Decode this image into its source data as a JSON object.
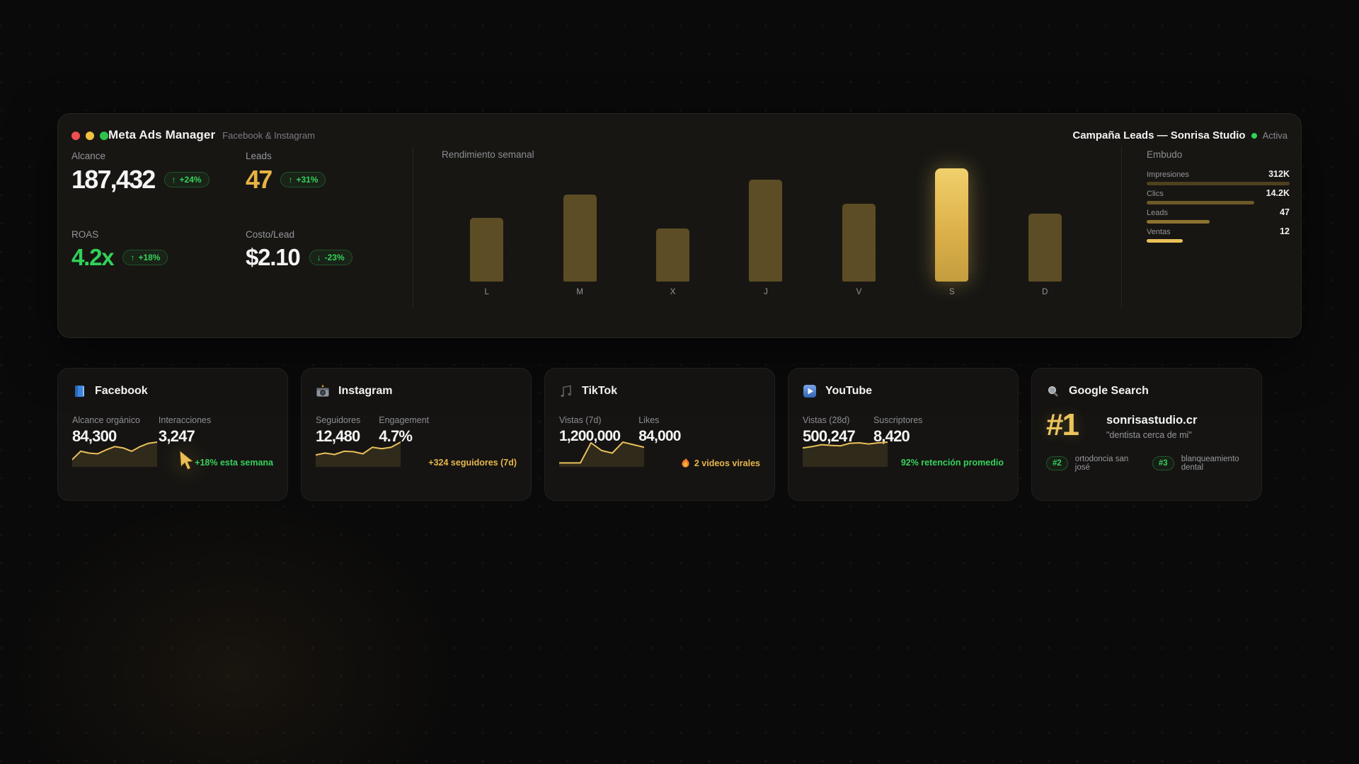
{
  "colors": {
    "accent_gold": "#e9c05a",
    "positive_green": "#36d15c",
    "leads_gold": "#e7b345",
    "bar_normal": "#5d4d24",
    "bar_highlight_top": "#f1d06b",
    "bar_highlight_bottom": "#c49d3e"
  },
  "window": {
    "title": "Meta Ads Manager",
    "subtitle": "Facebook & Instagram",
    "campaign_name": "Campaña Leads — Sonrisa Studio",
    "campaign_status": "Activa"
  },
  "metrics": [
    {
      "label": "Alcance",
      "value": "187,432",
      "arrow": "↑",
      "delta": "+24%",
      "value_style": "white"
    },
    {
      "label": "Leads",
      "value": "47",
      "arrow": "↑",
      "delta": "+31%",
      "value_style": "gold"
    },
    {
      "label": "ROAS",
      "value": "4.2x",
      "arrow": "↑",
      "delta": "+18%",
      "value_style": "green"
    },
    {
      "label": "Costo/Lead",
      "value": "$2.10",
      "arrow": "↓",
      "delta": "-23%",
      "value_style": "white"
    }
  ],
  "chart_data": [
    {
      "type": "bar",
      "title": "Rendimiento semanal",
      "categories": [
        "L",
        "M",
        "X",
        "J",
        "V",
        "S",
        "D"
      ],
      "values": [
        56,
        77,
        47,
        90,
        69,
        100,
        60
      ],
      "unit": "percent_of_max_day",
      "highlight_category": "S",
      "grid": false,
      "bar_color": "#5d4d24"
    },
    {
      "type": "bar",
      "orientation": "horizontal",
      "title": "Embudo",
      "stages": [
        {
          "label": "Impresiones",
          "value": "312K",
          "width_pct": 100,
          "color": "#4e411e"
        },
        {
          "label": "Clics",
          "value": "14.2K",
          "width_pct": 75,
          "color": "#6d5a28"
        },
        {
          "label": "Leads",
          "value": "47",
          "width_pct": 44,
          "color": "#8d7331"
        },
        {
          "label": "Ventas",
          "value": "12",
          "width_pct": 25,
          "color": "#eac159"
        }
      ]
    }
  ],
  "cards": [
    {
      "name": "Facebook",
      "stats": [
        {
          "label": "Alcance orgánico",
          "value": "84,300"
        },
        {
          "label": "Interacciones",
          "value": "3,247"
        }
      ],
      "footer": {
        "text": "+18% esta semana",
        "color": "green"
      },
      "sparkline": [
        22,
        58,
        50,
        47,
        64,
        78,
        72,
        58,
        78,
        92,
        97
      ]
    },
    {
      "name": "Instagram",
      "stats": [
        {
          "label": "Seguidores",
          "value": "12,480"
        },
        {
          "label": "Engagement",
          "value": "4.7%"
        }
      ],
      "footer": {
        "text": "+324 seguidores (7d)",
        "color": "gold"
      },
      "sparkline": [
        42,
        50,
        44,
        58,
        56,
        47,
        75,
        69,
        75,
        97
      ]
    },
    {
      "name": "TikTok",
      "stats": [
        {
          "label": "Vistas (7d)",
          "value": "1,200,000"
        },
        {
          "label": "Likes",
          "value": "84,000"
        }
      ],
      "footer": {
        "text": "2 videos virales",
        "color": "gold"
      },
      "sparkline": [
        8,
        8,
        8,
        94,
        61,
        50,
        97,
        86,
        75
      ]
    },
    {
      "name": "YouTube",
      "stats": [
        {
          "label": "Vistas (28d)",
          "value": "500,247"
        },
        {
          "label": "Suscriptores",
          "value": "8,420"
        }
      ],
      "footer": {
        "text": "92% retención promedio",
        "color": "green"
      },
      "sparkline": [
        72,
        78,
        86,
        83,
        81,
        92,
        94,
        89,
        94,
        97
      ]
    },
    {
      "name": "Google Search",
      "rank": "#1",
      "domain": "sonrisastudio.cr",
      "query": "\"dentista cerca de mi\"",
      "other_rankings": [
        {
          "badge": "#2",
          "text": "ortodoncia san josé"
        },
        {
          "badge": "#3",
          "text": "blanqueamiento dental"
        }
      ]
    }
  ]
}
